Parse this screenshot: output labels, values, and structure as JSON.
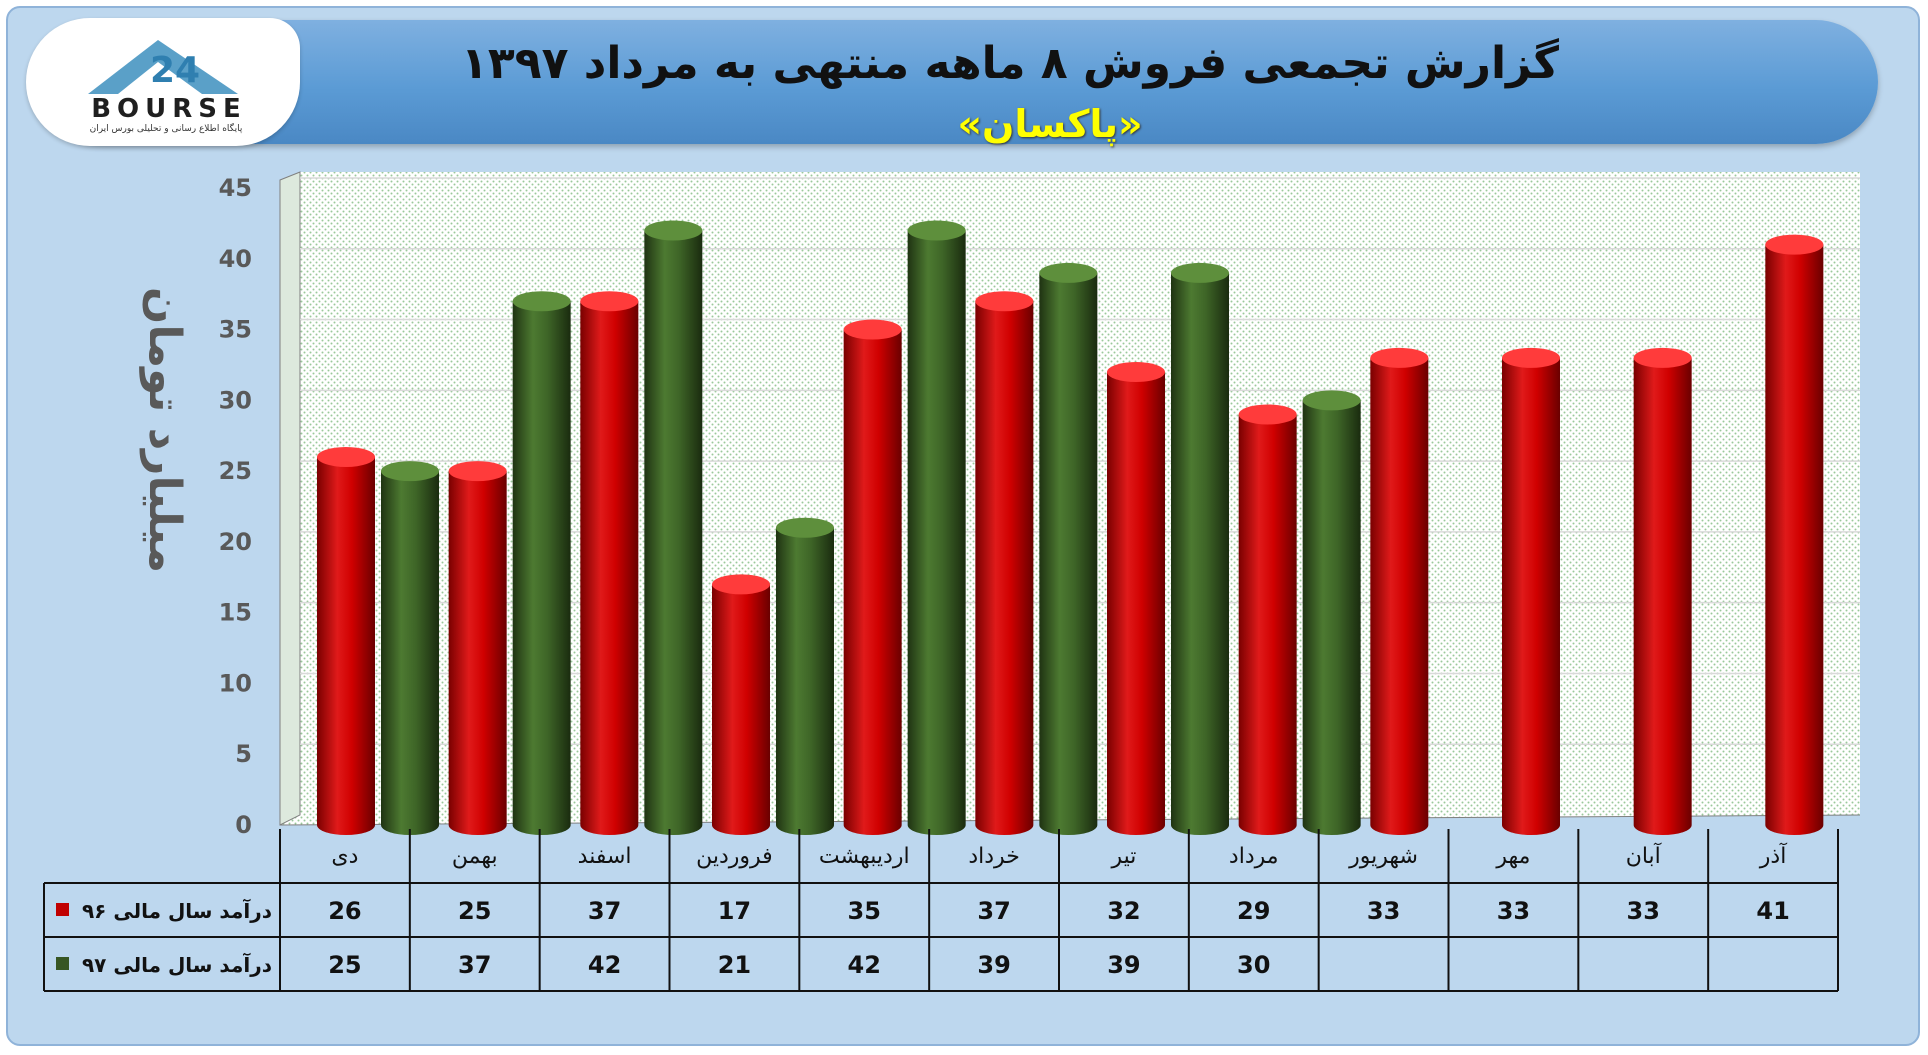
{
  "header": {
    "title": "گزارش تجمعی فروش ۸ ماهه منتهی به مرداد ۱۳۹۷",
    "subtitle": "«پاکسان»"
  },
  "logo": {
    "word": "BOURSE",
    "number": "24",
    "tagline": "پایگاه اطلاع رسانی و تحلیلی بورس ایران"
  },
  "colors": {
    "series_96": "#c00000",
    "series_97": "#375623",
    "frame": "#bdd7ee",
    "header": "#5b9bd5",
    "title_accent": "#ffff00"
  },
  "chart_data": {
    "type": "bar",
    "title": "گزارش تجمعی فروش ۸ ماهه منتهی به مرداد ۱۳۹۷",
    "subtitle": "«پاکسان»",
    "ylabel": "میلیارد تومان",
    "xlabel": "",
    "ylim": [
      0,
      45
    ],
    "yticks": [
      0,
      5,
      10,
      15,
      20,
      25,
      30,
      35,
      40,
      45
    ],
    "grid": true,
    "legend": "data-table",
    "categories": [
      "دی",
      "بهمن",
      "اسفند",
      "فروردین",
      "اردیبهشت",
      "خرداد",
      "تیر",
      "مرداد",
      "شهریور",
      "مهر",
      "آبان",
      "آذر"
    ],
    "series": [
      {
        "name": "درآمد سال مالی ۹۶",
        "color": "#c00000",
        "values": [
          26,
          25,
          37,
          17,
          35,
          37,
          32,
          29,
          33,
          33,
          33,
          41
        ]
      },
      {
        "name": "درآمد سال مالی ۹۷",
        "color": "#375623",
        "values": [
          25,
          37,
          42,
          21,
          42,
          39,
          39,
          30,
          null,
          null,
          null,
          null
        ]
      }
    ]
  }
}
